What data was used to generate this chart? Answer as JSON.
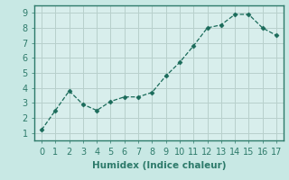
{
  "x": [
    0,
    1,
    2,
    3,
    4,
    5,
    6,
    7,
    8,
    9,
    10,
    11,
    12,
    13,
    14,
    15,
    16,
    17
  ],
  "y": [
    1.2,
    2.5,
    3.8,
    2.9,
    2.5,
    3.1,
    3.4,
    3.4,
    3.7,
    4.8,
    5.7,
    6.8,
    8.0,
    8.2,
    8.9,
    8.9,
    8.0,
    7.5
  ],
  "line_color": "#1a6b5a",
  "marker": "D",
  "marker_size": 2.5,
  "bg_color": "#c8e8e4",
  "plot_bg_color": "#d8eeec",
  "grid_color": "#b8d0cc",
  "border_color": "#2d7a6a",
  "xlabel": "Humidex (Indice chaleur)",
  "xlabel_fontsize": 7.5,
  "tick_fontsize": 7,
  "xlim": [
    -0.5,
    17.5
  ],
  "ylim": [
    0.5,
    9.5
  ],
  "yticks": [
    1,
    2,
    3,
    4,
    5,
    6,
    7,
    8,
    9
  ],
  "xticks": [
    0,
    1,
    2,
    3,
    4,
    5,
    6,
    7,
    8,
    9,
    10,
    11,
    12,
    13,
    14,
    15,
    16,
    17
  ]
}
